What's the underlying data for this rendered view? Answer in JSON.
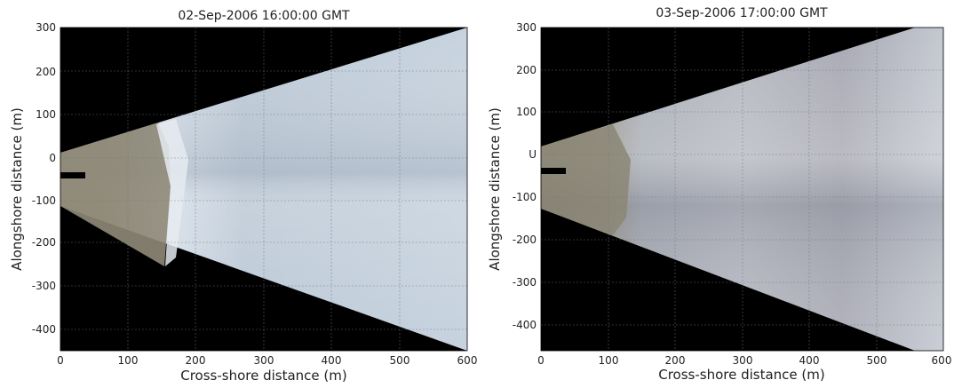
{
  "figure": {
    "panels": [
      {
        "title": "02-Sep-2006 16:00:00 GMT",
        "xlabel": "Cross-shore distance (m)",
        "ylabel": "Alongshore distance (m)",
        "xticks": [
          "0",
          "100",
          "200",
          "300",
          "400",
          "500",
          "600"
        ],
        "yticks": [
          "300",
          "200",
          "100",
          "0",
          "-100",
          "-200",
          "-300",
          "-400"
        ]
      },
      {
        "title": "03-Sep-2006 17:00:00 GMT",
        "xlabel": "Cross-shore distance (m)",
        "ylabel": "Alongshore distance (m)",
        "xticks": [
          "0",
          "100",
          "200",
          "300",
          "400",
          "500",
          "600"
        ],
        "yticks": [
          "300",
          "200",
          "100",
          "U",
          "-100",
          "-200",
          "-300",
          "-400"
        ]
      }
    ]
  }
}
